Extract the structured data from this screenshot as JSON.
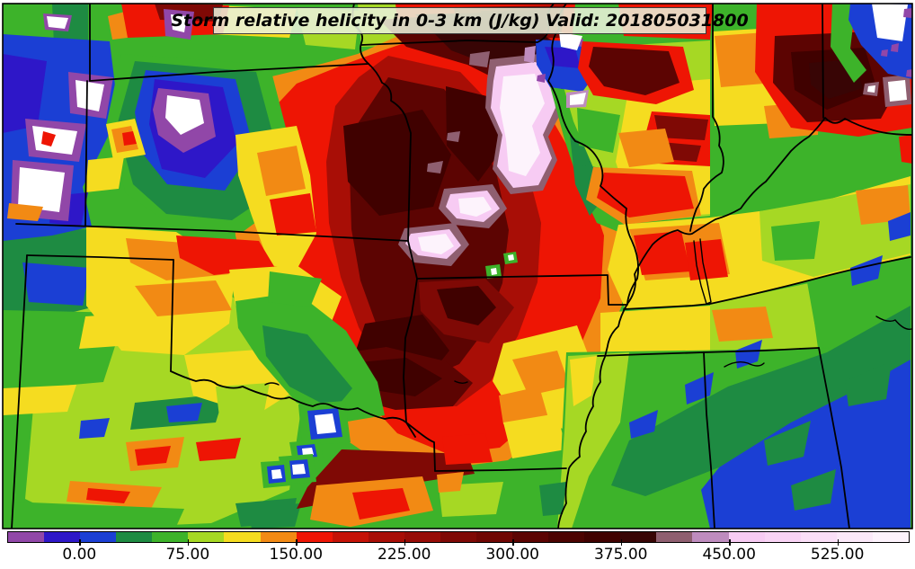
{
  "title": {
    "text": "Storm relative helicity in 0-3 km (J/kg) Valid: 201805031800"
  },
  "field": {
    "name": "Storm relative helicity 0-3 km",
    "units": "J/kg",
    "valid_time": "201805031800"
  },
  "colorbar": {
    "min": -50,
    "max": 575,
    "interval": 25,
    "ticks": [
      {
        "label": "0.00",
        "value": 0
      },
      {
        "label": "75.00",
        "value": 75
      },
      {
        "label": "150.00",
        "value": 150
      },
      {
        "label": "225.00",
        "value": 225
      },
      {
        "label": "300.00",
        "value": 300
      },
      {
        "label": "375.00",
        "value": 375
      },
      {
        "label": "450.00",
        "value": 450
      },
      {
        "label": "525.00",
        "value": 525
      }
    ],
    "colors": [
      "#9147A8",
      "#2E17C8",
      "#1B3FD4",
      "#1E8B42",
      "#3DB32A",
      "#A6D824",
      "#F5DC20",
      "#F28A14",
      "#EE1504",
      "#C51206",
      "#A80E06",
      "#970C06",
      "#7F0905",
      "#700603",
      "#5C0402",
      "#4C0301",
      "#400100",
      "#380505",
      "#8F5F70",
      "#BE8CBE",
      "#F7CBF3",
      "#F9D4F5",
      "#FADFF7",
      "#FBE9F9",
      "#FDF3FC"
    ]
  },
  "chart_data": {
    "type": "heatmap",
    "title": "Storm relative helicity in 0-3 km (J/kg) Valid: 201805031800",
    "colorbar_tick_labels": [
      "0.00",
      "75.00",
      "150.00",
      "225.00",
      "300.00",
      "375.00",
      "450.00",
      "525.00"
    ],
    "value_range": [
      -50,
      575
    ],
    "contour_interval": 25,
    "legend_position": "bottom"
  }
}
